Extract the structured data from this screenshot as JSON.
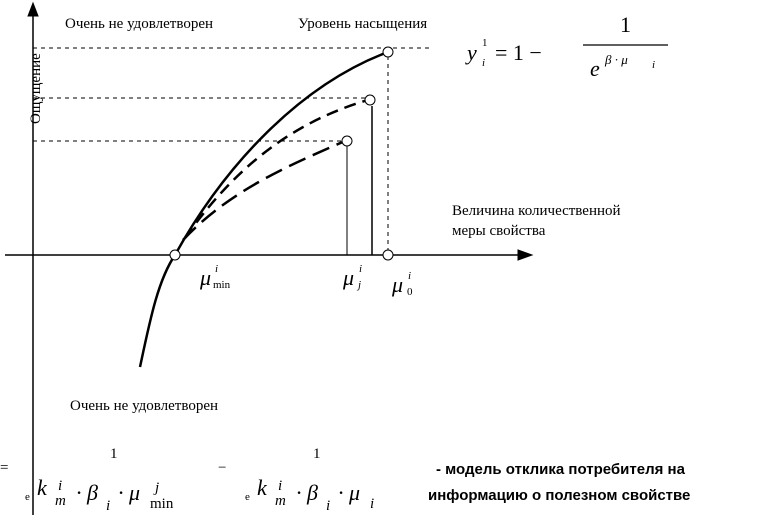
{
  "diagram": {
    "top_left_label": "Очень не удовлетворен",
    "saturation_label": "Уровень насыщения",
    "y_axis_label": "Ощущение",
    "x_axis_label": [
      "Величина количественной",
      "меры свойства"
    ],
    "bottom_label": "Очень не удовлетворен",
    "formula_top": {
      "y": "y",
      "y_sub": "i",
      "y_sup": "1",
      "eq": "= 1 −",
      "num": "1",
      "e": "e",
      "exp": "β · μ",
      "exp_sub": "i"
    },
    "marker_min": {
      "base": "μ",
      "sup": "i",
      "sub": "min"
    },
    "marker_j": {
      "base": "μ",
      "sup": "i",
      "sub": "j"
    },
    "marker_0": {
      "base": "μ",
      "sup": "i",
      "sub": "0"
    },
    "formula_bottom": {
      "eq": "=",
      "num1": "1",
      "e1": "e",
      "k1": "k",
      "k1_sup": "i",
      "k1_sub": "m",
      "b1": "· β",
      "b1_sub": "i",
      "m1": "· μ",
      "m1_sup": "j",
      "m1_sub": "min",
      "minus": "−",
      "num2": "1",
      "e2": "e",
      "k2": "k",
      "k2_sup": "i",
      "k2_sub": "m",
      "b2": "· β",
      "b2_sub": "i",
      "m2": "· μ",
      "m2_sub": "i"
    },
    "caption": [
      "- модель отклика потребителя на",
      "информацию о полезном свойстве"
    ]
  }
}
